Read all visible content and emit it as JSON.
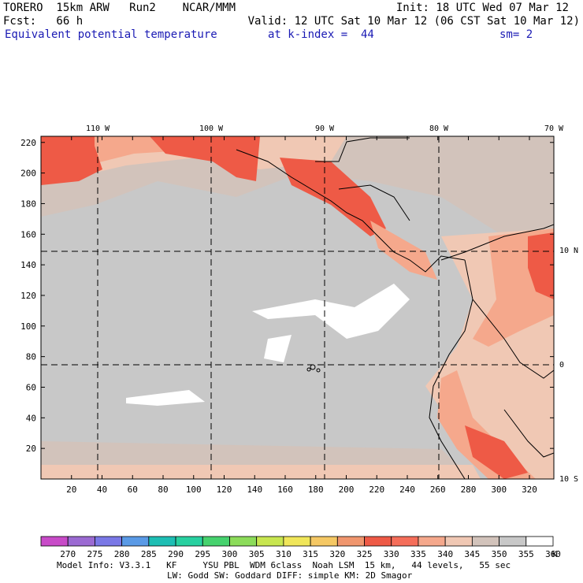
{
  "header": {
    "line1_left": "TORERO  15km ARW   Run2    NCAR/MMM",
    "line1_right": "Init: 18 UTC Wed 07 Mar 12",
    "line2_left": "Fcst:   66 h",
    "line2_right": "Valid: 12 UTC Sat 10 Mar 12 (06 CST Sat 10 Mar 12)",
    "line3_left": "Equivalent potential temperature",
    "line3_mid": "at k-index =  44",
    "line3_right": "sm= 2"
  },
  "map": {
    "lon_labels": [
      "110 W",
      "100 W",
      "90 W",
      "80 W",
      "70 W"
    ],
    "lat_labels": [
      "10 N",
      "0",
      "10 S"
    ],
    "x_ticks": [
      "20",
      "40",
      "60",
      "80",
      "100",
      "120",
      "140",
      "160",
      "180",
      "200",
      "220",
      "240",
      "260",
      "280",
      "300",
      "320"
    ],
    "y_ticks": [
      "220",
      "200",
      "180",
      "160",
      "140",
      "120",
      "100",
      "80",
      "60",
      "40",
      "20"
    ],
    "background_color": "#c8c8c8"
  },
  "legend": {
    "values": [
      "270",
      "275",
      "280",
      "285",
      "290",
      "295",
      "300",
      "305",
      "310",
      "315",
      "320",
      "325",
      "330",
      "335",
      "340",
      "345",
      "350",
      "355",
      "360"
    ],
    "unit": "K",
    "colors": [
      "#c84bc8",
      "#9b6ad2",
      "#7a78e6",
      "#5a9ae6",
      "#1ebeb4",
      "#28d0a0",
      "#46d26e",
      "#8cdc5a",
      "#c8e650",
      "#f0e65a",
      "#f5c864",
      "#f0966e",
      "#ee5a46",
      "#f56e5a",
      "#f5a88c",
      "#f0c8b4",
      "#d2c3bb",
      "#c8c8c8",
      "#ffffff"
    ]
  },
  "footer": {
    "line1": "Model Info: V3.3.1   KF     YSU PBL  WDM 6class  Noah LSM  15 km,   44 levels,   55 sec",
    "line2": "LW: Godd SW: Goddard DIFF: simple KM: 2D Smagor"
  }
}
